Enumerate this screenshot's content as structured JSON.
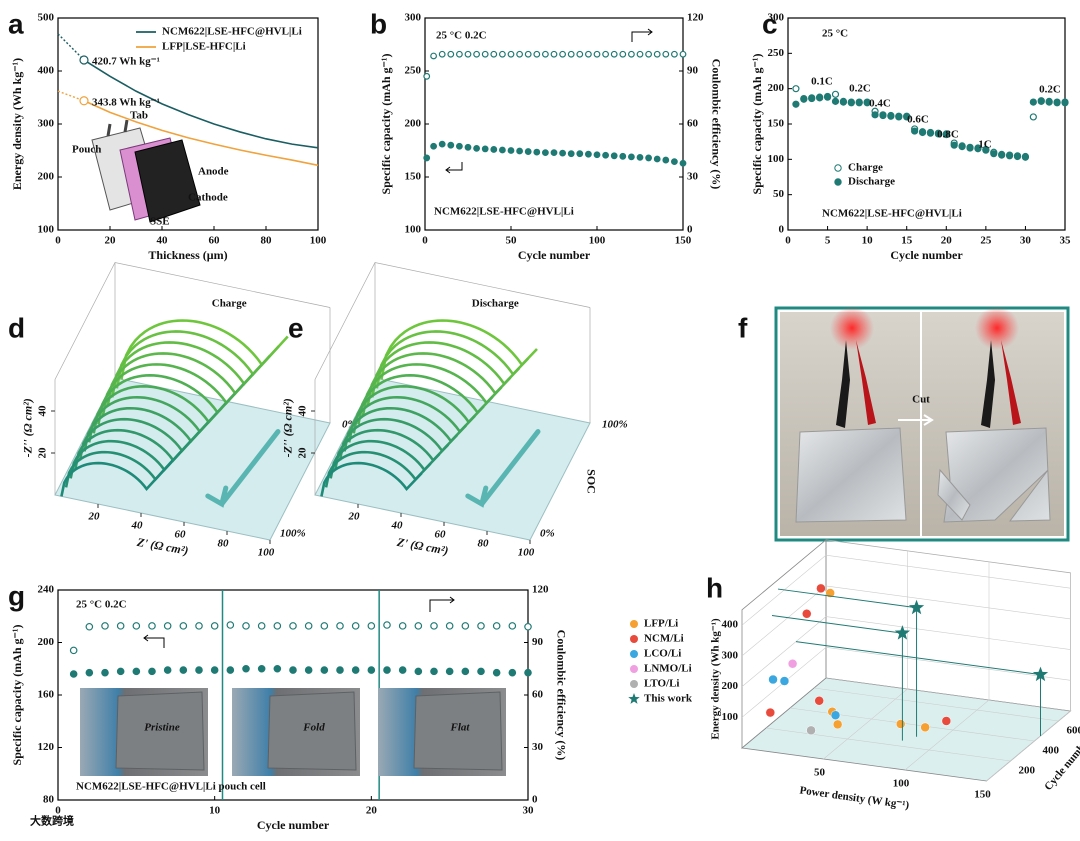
{
  "chart_data": [
    {
      "type": "line",
      "panel_label": "a",
      "xlabel": "Thickness (μm)",
      "ylabel": "Energy density (Wh kg⁻¹)",
      "xlim": [
        0,
        100
      ],
      "xticks": [
        0,
        20,
        40,
        60,
        80,
        100
      ],
      "ylim": [
        100,
        500
      ],
      "yticks": [
        100,
        200,
        300,
        400,
        500
      ],
      "x": [
        10,
        20,
        30,
        40,
        50,
        60,
        70,
        80,
        90,
        100
      ],
      "series": [
        {
          "name": "NCM622|LSE-HFC@HVL|Li",
          "color": "#1a5e63",
          "style": "line",
          "values": [
            420.7,
            390,
            362,
            338,
            318,
            300,
            285,
            272,
            262,
            255
          ],
          "extrapolated": {
            "x": [
              0,
              10
            ],
            "values": [
              470,
              420.7
            ]
          },
          "annotation": "420.7 Wh kg⁻¹"
        },
        {
          "name": "LFP|LSE-HFC|Li",
          "color": "#f0a23c",
          "style": "line",
          "values": [
            343.8,
            322,
            304,
            288,
            274,
            262,
            251,
            241,
            232,
            222
          ],
          "extrapolated": {
            "x": [
              0,
              10
            ],
            "values": [
              362,
              343.8
            ]
          },
          "annotation": "343.8 Wh kg⁻¹"
        }
      ],
      "inset_labels": [
        "Pouch",
        "Tab",
        "Anode",
        "Cathode",
        "SSE"
      ]
    },
    {
      "type": "scatter",
      "panel_label": "b",
      "xlabel": "Cycle number",
      "ylabel": "Specific capacity (mAh g⁻¹)",
      "y2label": "Coulombic efficiency (%)",
      "xlim": [
        0,
        150
      ],
      "xticks": [
        0,
        50,
        100,
        150
      ],
      "ylim": [
        100,
        300
      ],
      "yticks": [
        100,
        150,
        200,
        250,
        300
      ],
      "y2lim": [
        0,
        120
      ],
      "y2ticks": [
        0,
        30,
        60,
        90,
        120
      ],
      "x": [
        1,
        5,
        10,
        15,
        20,
        25,
        30,
        35,
        40,
        45,
        50,
        55,
        60,
        65,
        70,
        75,
        80,
        85,
        90,
        95,
        100,
        105,
        110,
        115,
        120,
        125,
        130,
        135,
        140,
        145,
        150
      ],
      "series": [
        {
          "name": "Specific capacity",
          "color": "#1f7a74",
          "style": "filled",
          "values": [
            168,
            179,
            181,
            180,
            179,
            178,
            177,
            176.5,
            176,
            175.5,
            175,
            174.5,
            174,
            173.5,
            173,
            173,
            172.5,
            172,
            172,
            171.5,
            171,
            170.5,
            170,
            169.5,
            169,
            168.5,
            168,
            167,
            166,
            164.5,
            163
          ]
        },
        {
          "name": "Coulombic efficiency",
          "color": "#1f7a74",
          "style": "open",
          "axis": "y2",
          "values": [
            87,
            98.5,
            99.5,
            99.5,
            99.5,
            99.5,
            99.5,
            99.5,
            99.5,
            99.5,
            99.5,
            99.5,
            99.5,
            99.5,
            99.5,
            99.5,
            99.5,
            99.5,
            99.5,
            99.5,
            99.5,
            99.5,
            99.5,
            99.5,
            99.5,
            99.5,
            99.5,
            99.5,
            99.5,
            99.5,
            99.5
          ]
        }
      ],
      "annotations": [
        "25 °C  0.2C",
        "NCM622|LSE-HFC@HVL|Li"
      ]
    },
    {
      "type": "scatter",
      "panel_label": "c",
      "xlabel": "Cycle number",
      "ylabel": "Specific capacity (mAh g⁻¹)",
      "xlim": [
        0,
        35
      ],
      "xticks": [
        0,
        5,
        10,
        15,
        20,
        25,
        30,
        35
      ],
      "ylim": [
        0,
        300
      ],
      "yticks": [
        0,
        50,
        100,
        150,
        200,
        250,
        300
      ],
      "x": [
        1,
        2,
        3,
        4,
        5,
        6,
        7,
        8,
        9,
        10,
        11,
        12,
        13,
        14,
        15,
        16,
        17,
        18,
        19,
        20,
        21,
        22,
        23,
        24,
        25,
        26,
        27,
        28,
        29,
        30,
        31,
        32,
        33,
        34,
        35
      ],
      "series": [
        {
          "name": "Charge",
          "color": "#1f7a74",
          "style": "open",
          "values": [
            200,
            186,
            187,
            188,
            189,
            192,
            182,
            181,
            181,
            181,
            168,
            163,
            162,
            161,
            161,
            143,
            139,
            138,
            137,
            136,
            123,
            119,
            117,
            116,
            114,
            110,
            107,
            106,
            105,
            104,
            160,
            183,
            182,
            181,
            181
          ]
        },
        {
          "name": "Discharge",
          "color": "#1f7a74",
          "style": "filled",
          "values": [
            178,
            185,
            186,
            187,
            188,
            182,
            181,
            180,
            180,
            180,
            163,
            162,
            161,
            160,
            160,
            140,
            138,
            137,
            136,
            135,
            120,
            118,
            116,
            115,
            113,
            108,
            106,
            105,
            104,
            103,
            181,
            182,
            181,
            180,
            180
          ]
        }
      ],
      "rate_labels": [
        "0.1C",
        "0.2C",
        "0.4C",
        "0.6C",
        "0.8C",
        "1C",
        "0.2C"
      ],
      "annotations": [
        "25 °C",
        "NCM622|LSE-HFC@HVL|Li"
      ]
    },
    {
      "type": "waterfall3d",
      "panel_label": "d",
      "title": "Charge",
      "xlabel": "Z' (Ω cm²)",
      "zlabel": "-Z'' (Ω cm²)",
      "soc_label": "SOC",
      "xticks": [
        20,
        40,
        60,
        80,
        100
      ],
      "zticks": [
        20,
        40
      ],
      "soc_ticks": [
        "0%",
        "100%"
      ]
    },
    {
      "type": "waterfall3d",
      "panel_label": "e",
      "title": "Discharge",
      "xlabel": "Z' (Ω cm²)",
      "zlabel": "-Z'' (Ω cm²)",
      "soc_label": "SOC",
      "xticks": [
        20,
        40,
        60,
        80,
        100
      ],
      "zticks": [
        20,
        40
      ],
      "soc_ticks": [
        "100%",
        "0%"
      ]
    },
    {
      "type": "photo",
      "panel_label": "f",
      "label": "Cut"
    },
    {
      "type": "scatter",
      "panel_label": "g",
      "xlabel": "Cycle number",
      "ylabel": "Specific capacity (mAh g⁻¹)",
      "y2label": "Coulombic efficiency (%)",
      "xlim": [
        0,
        30
      ],
      "xticks": [
        0,
        10,
        20,
        30
      ],
      "ylim": [
        80,
        240
      ],
      "yticks": [
        80,
        120,
        160,
        200,
        240
      ],
      "y2lim": [
        0,
        120
      ],
      "y2ticks": [
        0,
        30,
        60,
        90,
        120
      ],
      "x": [
        1,
        2,
        3,
        4,
        5,
        6,
        7,
        8,
        9,
        10,
        11,
        12,
        13,
        14,
        15,
        16,
        17,
        18,
        19,
        20,
        21,
        22,
        23,
        24,
        25,
        26,
        27,
        28,
        29,
        30
      ],
      "series": [
        {
          "name": "Specific capacity",
          "color": "#1f7a74",
          "style": "filled",
          "values": [
            176,
            177,
            177,
            178,
            178,
            178,
            179,
            179,
            179,
            179,
            179,
            180,
            180,
            180,
            179,
            179,
            179,
            179,
            179,
            179,
            179,
            179,
            178,
            178,
            178,
            178,
            178,
            177,
            177,
            177
          ]
        },
        {
          "name": "Coulombic efficiency",
          "color": "#1f7a74",
          "style": "open",
          "axis": "y2",
          "values": [
            85.5,
            99,
            99.5,
            99.5,
            99.5,
            99.5,
            99.5,
            99.5,
            99.5,
            99.5,
            100,
            99.5,
            99.5,
            99.5,
            99.5,
            99.5,
            99.5,
            99.5,
            99.5,
            99.5,
            100,
            99.5,
            99.5,
            99.5,
            99.5,
            99.5,
            99.5,
            99.5,
            99.5,
            99
          ]
        }
      ],
      "photo_labels": [
        "Pristine",
        "Fold",
        "Flat"
      ],
      "annotations": [
        "25 °C  0.2C",
        "NCM622|LSE-HFC@HVL|Li pouch cell"
      ]
    },
    {
      "type": "scatter3d",
      "panel_label": "h",
      "xlabel": "Power density (W kg⁻¹)",
      "ylabel": "Energy density (Wh kg⁻¹)",
      "zlabel": "Cycle number",
      "xlim": [
        0,
        150
      ],
      "xticks": [
        50,
        100,
        150
      ],
      "ylim": [
        0,
        450
      ],
      "yticks": [
        100,
        200,
        300,
        400
      ],
      "zlim": [
        0,
        700
      ],
      "zticks": [
        200,
        400,
        600
      ],
      "series": [
        {
          "name": "LFP/Li",
          "color": "#f5a030",
          "x": [
            32,
            48,
            55,
            90,
            105
          ],
          "values": [
            430,
            120,
            100,
            110,
            110
          ],
          "z": [
            300,
            100,
            50,
            100,
            100
          ]
        },
        {
          "name": "NCM/Li",
          "color": "#e84a3c",
          "x": [
            30,
            25,
            40,
            10,
            118
          ],
          "values": [
            460,
            390,
            150,
            90,
            140
          ],
          "z": [
            250,
            200,
            100,
            100,
            100
          ]
        },
        {
          "name": "LCO/Li",
          "color": "#3aa7e0",
          "x": [
            8,
            15,
            50
          ],
          "values": [
            180,
            180,
            110
          ],
          "z": [
            150,
            150,
            100
          ]
        },
        {
          "name": "LNMO/Li",
          "color": "#f0a0e0",
          "x": [
            20
          ],
          "values": [
            240
          ],
          "z": [
            150
          ]
        },
        {
          "name": "LTO/Li",
          "color": "#b0b0b0",
          "x": [
            35
          ],
          "values": [
            50
          ],
          "z": [
            100
          ]
        },
        {
          "name": "This work",
          "color": "#1f7a74",
          "marker": "star",
          "x": [
            85,
            80,
            150
          ],
          "values": [
            420,
            350,
            200
          ],
          "z": [
            300,
            250,
            450
          ]
        }
      ]
    }
  ],
  "watermark": "大数跨境"
}
